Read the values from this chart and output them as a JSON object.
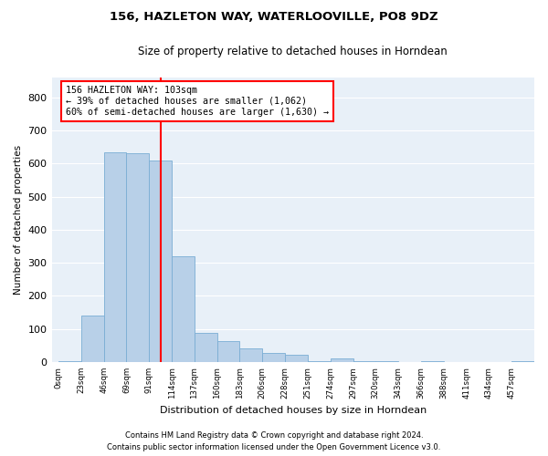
{
  "title1": "156, HAZLETON WAY, WATERLOOVILLE, PO8 9DZ",
  "title2": "Size of property relative to detached houses in Horndean",
  "xlabel": "Distribution of detached houses by size in Horndean",
  "ylabel": "Number of detached properties",
  "bin_labels": [
    "0sqm",
    "23sqm",
    "46sqm",
    "69sqm",
    "91sqm",
    "114sqm",
    "137sqm",
    "160sqm",
    "183sqm",
    "206sqm",
    "228sqm",
    "251sqm",
    "274sqm",
    "297sqm",
    "320sqm",
    "343sqm",
    "366sqm",
    "388sqm",
    "411sqm",
    "434sqm",
    "457sqm"
  ],
  "bar_heights": [
    3,
    140,
    635,
    630,
    608,
    320,
    88,
    63,
    42,
    28,
    22,
    3,
    12,
    3,
    3,
    0,
    3,
    0,
    0,
    0,
    3
  ],
  "bar_color": "#b8d0e8",
  "bar_edge_color": "#7aadd4",
  "bg_color": "#e8f0f8",
  "grid_color": "#ffffff",
  "annotation_text": "156 HAZLETON WAY: 103sqm\n← 39% of detached houses are smaller (1,062)\n60% of semi-detached houses are larger (1,630) →",
  "footer_line1": "Contains HM Land Registry data © Crown copyright and database right 2024.",
  "footer_line2": "Contains public sector information licensed under the Open Government Licence v3.0.",
  "ylim": [
    0,
    860
  ],
  "yticks": [
    0,
    100,
    200,
    300,
    400,
    500,
    600,
    700,
    800
  ],
  "prop_sqm": 103,
  "bin_starts": [
    0,
    23,
    46,
    69,
    91,
    114,
    137,
    160,
    183,
    206,
    228,
    251,
    274,
    297,
    320,
    343,
    366,
    388,
    411,
    434,
    457
  ]
}
